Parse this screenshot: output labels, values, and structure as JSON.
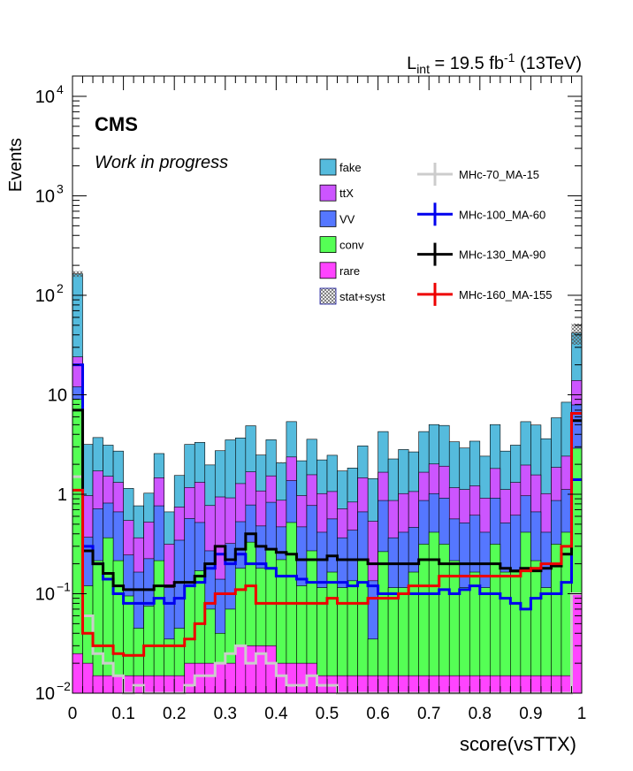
{
  "chart_data": {
    "type": "histogram",
    "lumi_label": {
      "prefix": "L",
      "subscript": "int",
      "value_text": " = 19.5 fb",
      "superscript": "-1",
      "suffix": " (13TeV)"
    },
    "experiment_label": "CMS",
    "status_label": "Work in progress",
    "xlabel": "score(vsTTX)",
    "ylabel": "Events",
    "xlim": [
      0,
      1
    ],
    "ylim": [
      0.01,
      16000
    ],
    "log_y": true,
    "x_ticks": [
      {
        "v": 0,
        "t": "0"
      },
      {
        "v": 0.1,
        "t": "0.1"
      },
      {
        "v": 0.2,
        "t": "0.2"
      },
      {
        "v": 0.3,
        "t": "0.3"
      },
      {
        "v": 0.4,
        "t": "0.4"
      },
      {
        "v": 0.5,
        "t": "0.5"
      },
      {
        "v": 0.6,
        "t": "0.6"
      },
      {
        "v": 0.7,
        "t": "0.7"
      },
      {
        "v": 0.8,
        "t": "0.8"
      },
      {
        "v": 0.9,
        "t": "0.9"
      },
      {
        "v": 1,
        "t": "1"
      }
    ],
    "y_ticks": [
      {
        "v": 0.01,
        "base": "10",
        "exp": "−2"
      },
      {
        "v": 0.1,
        "base": "10",
        "exp": "−1"
      },
      {
        "v": 1,
        "base": "1",
        "exp": ""
      },
      {
        "v": 10,
        "base": "10",
        "exp": ""
      },
      {
        "v": 100,
        "base": "10",
        "exp": "2"
      },
      {
        "v": 1000,
        "base": "10",
        "exp": "3"
      },
      {
        "v": 10000,
        "base": "10",
        "exp": "4"
      }
    ],
    "legend_placement": "top-center",
    "bin_edges": [
      0,
      0.02,
      0.04,
      0.06,
      0.08,
      0.1,
      0.12,
      0.14,
      0.16,
      0.18,
      0.2,
      0.22,
      0.24,
      0.26,
      0.28,
      0.3,
      0.32,
      0.34,
      0.36,
      0.38,
      0.4,
      0.42,
      0.44,
      0.46,
      0.48,
      0.5,
      0.52,
      0.54,
      0.56,
      0.58,
      0.6,
      0.62,
      0.64,
      0.66,
      0.68,
      0.7,
      0.72,
      0.74,
      0.76,
      0.78,
      0.8,
      0.82,
      0.84,
      0.86,
      0.88,
      0.9,
      0.92,
      0.94,
      0.96,
      0.98,
      1.0
    ],
    "stack": [
      {
        "name": "rare",
        "color": "#ff44ff",
        "values": [
          0.025,
          0.02,
          0.015,
          0.015,
          0.015,
          0.015,
          0.015,
          0.015,
          0.015,
          0.015,
          0.015,
          0.02,
          0.02,
          0.02,
          0.02,
          0.02,
          0.03,
          0.03,
          0.03,
          0.03,
          0.02,
          0.02,
          0.02,
          0.02,
          0.015,
          0.015,
          0.015,
          0.015,
          0.015,
          0.015,
          0.015,
          0.015,
          0.015,
          0.015,
          0.015,
          0.015,
          0.015,
          0.015,
          0.015,
          0.015,
          0.015,
          0.015,
          0.015,
          0.015,
          0.015,
          0.015,
          0.015,
          0.015,
          0.015,
          0.1
        ]
      },
      {
        "name": "conv",
        "color": "#55ff55",
        "values": [
          9,
          0.1,
          0.2,
          0.35,
          0.2,
          0.08,
          0.03,
          0.06,
          0.2,
          0.02,
          0.03,
          0.1,
          0.15,
          0.05,
          0.02,
          0.05,
          0.15,
          0.3,
          0.15,
          0.25,
          0.2,
          0.5,
          0.1,
          0.25,
          0.1,
          0.15,
          0.1,
          0.12,
          0.2,
          0.02,
          0.25,
          0.1,
          0.1,
          0.15,
          0.3,
          0.4,
          0.3,
          0.2,
          0.1,
          0.15,
          0.1,
          0.3,
          0.15,
          0.15,
          0.4,
          0.2,
          0.1,
          0.3,
          0.4,
          2.8
        ]
      },
      {
        "name": "VV",
        "color": "#5577ff",
        "values": [
          3,
          0.25,
          0.5,
          0.45,
          0.45,
          0.15,
          0.12,
          0.15,
          0.55,
          0.08,
          0.3,
          0.45,
          0.35,
          0.2,
          0.1,
          0.25,
          0.35,
          0.45,
          0.3,
          0.55,
          0.25,
          0.85,
          0.35,
          0.5,
          0.3,
          0.4,
          0.25,
          0.3,
          0.45,
          0.1,
          0.6,
          0.25,
          0.3,
          0.3,
          0.55,
          0.6,
          0.6,
          0.35,
          0.4,
          0.45,
          0.3,
          0.6,
          0.35,
          0.45,
          0.55,
          0.45,
          0.3,
          0.55,
          0.7,
          5
        ]
      },
      {
        "name": "ttX",
        "color": "#cc55ff",
        "values": [
          12,
          0.6,
          1,
          0.7,
          0.65,
          0.3,
          0.2,
          0.3,
          0.7,
          0.2,
          0.4,
          0.6,
          0.8,
          0.5,
          0.8,
          0.6,
          0.75,
          0.9,
          0.6,
          0.7,
          0.4,
          1,
          0.5,
          0.8,
          0.6,
          0.5,
          0.35,
          0.4,
          0.8,
          0.4,
          0.8,
          0.5,
          0.6,
          0.6,
          0.8,
          1,
          1,
          0.6,
          0.6,
          0.6,
          0.5,
          0.9,
          0.6,
          0.7,
          1,
          0.9,
          0.6,
          1,
          1.3,
          6
        ]
      },
      {
        "name": "fake",
        "color": "#55bbdd",
        "values": [
          140,
          2.2,
          2,
          1.6,
          1.4,
          0.6,
          0.4,
          0.5,
          1.1,
          0.35,
          0.8,
          2,
          2,
          1.2,
          1.8,
          2.6,
          2.4,
          3.2,
          1.4,
          2,
          1.2,
          3,
          1.2,
          2,
          1.2,
          1.4,
          1,
          1,
          1.6,
          0.9,
          2.6,
          1.4,
          1.8,
          1.6,
          2.6,
          3,
          3,
          2.2,
          1.8,
          2.2,
          1.5,
          3.2,
          1.6,
          1.8,
          3.4,
          3.4,
          2.6,
          4,
          6,
          28
        ]
      }
    ],
    "uncertainty_band": {
      "name": "stat+syst",
      "pattern": "hatched",
      "values": [
        175,
        2.7,
        2.5,
        2.2,
        1.7,
        1,
        0.7,
        0.8,
        1.9,
        0.55,
        1.1,
        2.8,
        2.8,
        1.7,
        2.4,
        3.4,
        3.4,
        4.3,
        2.1,
        3,
        2.1,
        4.4,
        1.9,
        3,
        1.9,
        2.1,
        1.5,
        1.6,
        2.6,
        1.4,
        3.3,
        2,
        2.6,
        2.4,
        3.8,
        4.6,
        4.3,
        3,
        2.6,
        3.1,
        2.2,
        4.1,
        2.3,
        2.6,
        4.6,
        4.4,
        3.3,
        5.4,
        8,
        52
      ]
    },
    "signals": [
      {
        "name": "MHc-70_MA-15",
        "color": "#cccccc",
        "values": [
          1.5,
          0.06,
          0.025,
          0.02,
          0.015,
          0.01,
          0.012,
          0.01,
          0.008,
          0.008,
          0.01,
          0.012,
          0.015,
          0.015,
          0.02,
          0.025,
          0.03,
          0.02,
          0.025,
          0.02,
          0.015,
          0.012,
          0.012,
          0.015,
          0.012,
          0.012,
          0.01,
          0.01,
          0.01,
          0.008,
          0.008,
          0.008,
          0.008,
          0.008,
          0.008,
          0.008,
          0.008,
          0.008,
          0.008,
          0.008,
          0.008,
          0.008,
          0.008,
          0.008,
          0.008,
          0.008,
          0.008,
          0.008,
          0.008,
          0.1
        ]
      },
      {
        "name": "MHc-100_MA-60",
        "color": "#0000ee",
        "values": [
          20,
          0.3,
          0.2,
          0.14,
          0.1,
          0.08,
          0.08,
          0.08,
          0.09,
          0.08,
          0.09,
          0.12,
          0.13,
          0.18,
          0.25,
          0.2,
          0.25,
          0.2,
          0.2,
          0.18,
          0.15,
          0.15,
          0.14,
          0.13,
          0.13,
          0.13,
          0.13,
          0.12,
          0.13,
          0.12,
          0.1,
          0.1,
          0.1,
          0.1,
          0.1,
          0.1,
          0.11,
          0.1,
          0.11,
          0.12,
          0.1,
          0.1,
          0.09,
          0.08,
          0.07,
          0.09,
          0.1,
          0.1,
          0.13,
          1.4
        ]
      },
      {
        "name": "MHc-130_MA-90",
        "color": "#000000",
        "values": [
          7,
          0.27,
          0.2,
          0.16,
          0.12,
          0.11,
          0.11,
          0.11,
          0.12,
          0.12,
          0.13,
          0.13,
          0.15,
          0.2,
          0.3,
          0.22,
          0.28,
          0.4,
          0.3,
          0.28,
          0.26,
          0.25,
          0.22,
          0.22,
          0.22,
          0.24,
          0.22,
          0.22,
          0.22,
          0.2,
          0.2,
          0.2,
          0.2,
          0.2,
          0.22,
          0.22,
          0.2,
          0.2,
          0.2,
          0.2,
          0.2,
          0.2,
          0.18,
          0.17,
          0.18,
          0.17,
          0.18,
          0.19,
          0.25,
          5.5
        ]
      },
      {
        "name": "MHc-160_MA-155",
        "color": "#ee0000",
        "values": [
          1.1,
          0.04,
          0.03,
          0.03,
          0.025,
          0.024,
          0.024,
          0.03,
          0.03,
          0.03,
          0.03,
          0.035,
          0.05,
          0.08,
          0.1,
          0.1,
          0.11,
          0.12,
          0.08,
          0.08,
          0.08,
          0.08,
          0.08,
          0.08,
          0.08,
          0.09,
          0.08,
          0.08,
          0.08,
          0.09,
          0.09,
          0.09,
          0.1,
          0.12,
          0.12,
          0.12,
          0.15,
          0.15,
          0.15,
          0.15,
          0.15,
          0.15,
          0.15,
          0.15,
          0.17,
          0.18,
          0.2,
          0.2,
          0.3,
          6.5
        ]
      }
    ]
  }
}
